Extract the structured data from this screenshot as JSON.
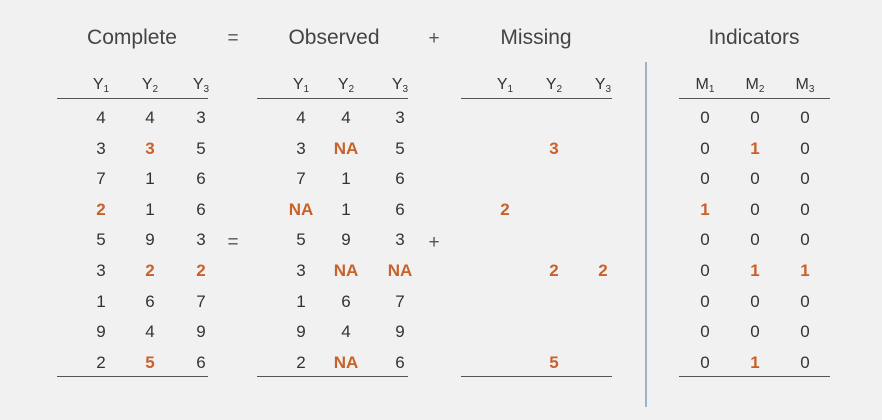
{
  "titles": {
    "complete": "Complete",
    "observed": "Observed",
    "missing": "Missing",
    "indicators": "Indicators"
  },
  "operators": {
    "equals": "=",
    "plus": "+"
  },
  "headers": {
    "Y": [
      "Y",
      "Y",
      "Y"
    ],
    "M": [
      "M",
      "M",
      "M"
    ],
    "subscripts": [
      "1",
      "2",
      "3"
    ]
  },
  "colors": {
    "highlight": "#c8612a",
    "text": "#333333",
    "separator": "#9fb3c8",
    "background": "#f1f1f1"
  },
  "complete": [
    [
      "4",
      "4",
      "3"
    ],
    [
      "3",
      "3",
      "5"
    ],
    [
      "7",
      "1",
      "6"
    ],
    [
      "2",
      "1",
      "6"
    ],
    [
      "5",
      "9",
      "3"
    ],
    [
      "3",
      "2",
      "2"
    ],
    [
      "1",
      "6",
      "7"
    ],
    [
      "9",
      "4",
      "9"
    ],
    [
      "2",
      "5",
      "6"
    ]
  ],
  "observed": [
    [
      "4",
      "4",
      "3"
    ],
    [
      "3",
      "NA",
      "5"
    ],
    [
      "7",
      "1",
      "6"
    ],
    [
      "NA",
      "1",
      "6"
    ],
    [
      "5",
      "9",
      "3"
    ],
    [
      "3",
      "NA",
      "NA"
    ],
    [
      "1",
      "6",
      "7"
    ],
    [
      "9",
      "4",
      "9"
    ],
    [
      "2",
      "NA",
      "6"
    ]
  ],
  "missing": [
    [
      "",
      "",
      ""
    ],
    [
      "",
      "3",
      ""
    ],
    [
      "",
      "",
      ""
    ],
    [
      "2",
      "",
      ""
    ],
    [
      "",
      "",
      ""
    ],
    [
      "",
      "2",
      "2"
    ],
    [
      "",
      "",
      ""
    ],
    [
      "",
      "",
      ""
    ],
    [
      "",
      "5",
      ""
    ]
  ],
  "indicators": [
    [
      "0",
      "0",
      "0"
    ],
    [
      "0",
      "1",
      "0"
    ],
    [
      "0",
      "0",
      "0"
    ],
    [
      "1",
      "0",
      "0"
    ],
    [
      "0",
      "0",
      "0"
    ],
    [
      "0",
      "1",
      "1"
    ],
    [
      "0",
      "0",
      "0"
    ],
    [
      "0",
      "0",
      "0"
    ],
    [
      "0",
      "1",
      "0"
    ]
  ]
}
